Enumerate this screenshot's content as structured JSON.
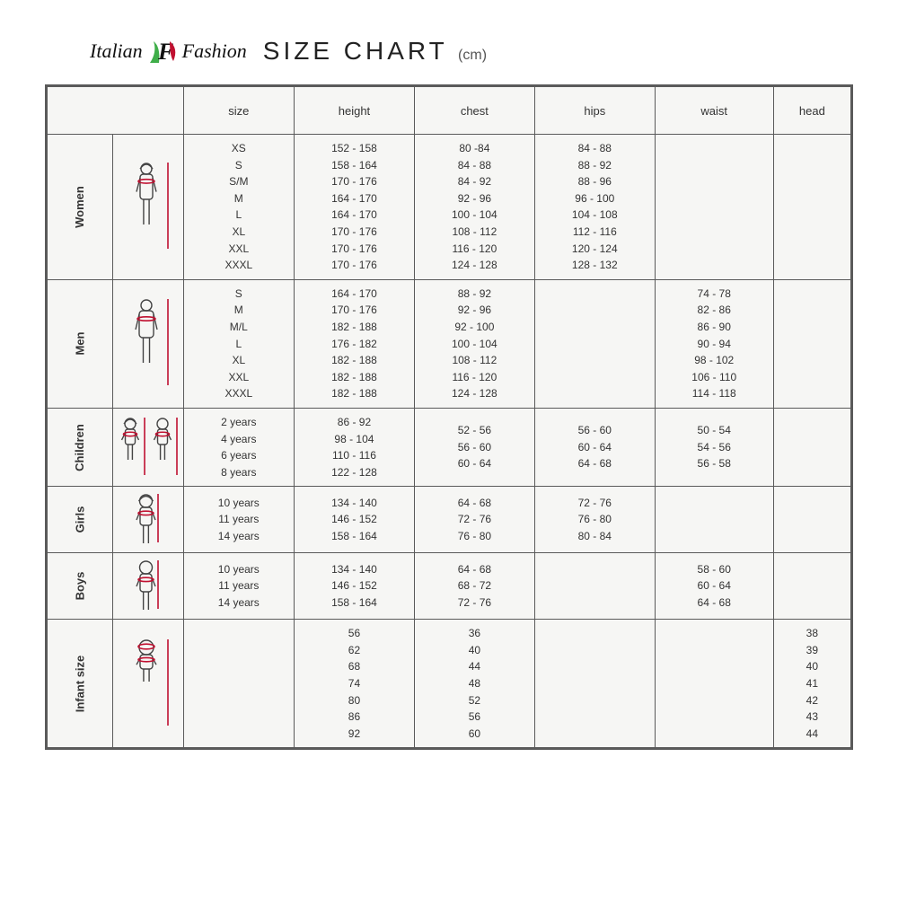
{
  "brand": {
    "left": "Italian",
    "right": "Fashion"
  },
  "title": "SIZE CHART",
  "unit": "(cm)",
  "columns": [
    "size",
    "height",
    "chest",
    "hips",
    "waist",
    "head"
  ],
  "categories": [
    {
      "label": "Women",
      "icon": "woman",
      "rows": {
        "size": [
          "XS",
          "S",
          "S/M",
          "M",
          "L",
          "XL",
          "XXL",
          "XXXL"
        ],
        "height": [
          "152 - 158",
          "158 - 164",
          "170 - 176",
          "164 - 170",
          "164 - 170",
          "170 - 176",
          "170 - 176",
          "170 - 176"
        ],
        "chest": [
          "80 -84",
          "84 - 88",
          "84 - 92",
          "92 - 96",
          "100 - 104",
          "108 - 112",
          "116 - 120",
          "124 - 128"
        ],
        "hips": [
          "84 - 88",
          "88 - 92",
          "88 - 96",
          "96 - 100",
          "104 - 108",
          "112 - 116",
          "120 - 124",
          "128 - 132"
        ],
        "waist": [],
        "head": []
      }
    },
    {
      "label": "Men",
      "icon": "man",
      "rows": {
        "size": [
          "S",
          "M",
          "M/L",
          "L",
          "XL",
          "XXL",
          "XXXL"
        ],
        "height": [
          "164 - 170",
          "170 - 176",
          "182 - 188",
          "176 - 182",
          "182 - 188",
          "182 - 188",
          "182 - 188"
        ],
        "chest": [
          "88 - 92",
          "92 - 96",
          "92 - 100",
          "100 - 104",
          "108 - 112",
          "116 - 120",
          "124 - 128"
        ],
        "hips": [],
        "waist": [
          "74 - 78",
          "82 - 86",
          "86 - 90",
          "90 - 94",
          "98 - 102",
          "106 - 110",
          "114 - 118"
        ],
        "head": []
      }
    },
    {
      "label": "Children",
      "icon": "children",
      "rows": {
        "size": [
          "2 years",
          "4 years",
          "6 years",
          "8 years"
        ],
        "height": [
          "86 - 92",
          "98 - 104",
          "110 - 116",
          "122 - 128"
        ],
        "chest": [
          "52 - 56",
          "56 - 60",
          "60 - 64"
        ],
        "hips": [
          "56 - 60",
          "60 - 64",
          "64 - 68"
        ],
        "waist": [
          "50 - 54",
          "54 - 56",
          "56 - 58"
        ],
        "head": []
      }
    },
    {
      "label": "Girls",
      "icon": "girl",
      "rows": {
        "size": [
          "10 years",
          "11 years",
          "14 years"
        ],
        "height": [
          "134 - 140",
          "146 - 152",
          "158 - 164"
        ],
        "chest": [
          "64 - 68",
          "72 - 76",
          "76 - 80"
        ],
        "hips": [
          "72 - 76",
          "76 - 80",
          "80 - 84"
        ],
        "waist": [],
        "head": []
      }
    },
    {
      "label": "Boys",
      "icon": "boy",
      "rows": {
        "size": [
          "10 years",
          "11 years",
          "14 years"
        ],
        "height": [
          "134 - 140",
          "146 - 152",
          "158 - 164"
        ],
        "chest": [
          "64 - 68",
          "68 - 72",
          "72 - 76"
        ],
        "hips": [],
        "waist": [
          "58 - 60",
          "60 - 64",
          "64 - 68"
        ],
        "head": []
      }
    },
    {
      "label": "Infant size",
      "icon": "infant",
      "rows": {
        "size": [],
        "height": [
          "56",
          "62",
          "68",
          "74",
          "80",
          "86",
          "92"
        ],
        "chest": [
          "36",
          "40",
          "44",
          "48",
          "52",
          "56",
          "60"
        ],
        "hips": [],
        "waist": [],
        "head": [
          "38",
          "39",
          "40",
          "41",
          "42",
          "43",
          "44"
        ]
      }
    }
  ],
  "style": {
    "border_color": "#5a5a5a",
    "cell_bg": "#f6f6f4",
    "accent": "#c01030"
  }
}
